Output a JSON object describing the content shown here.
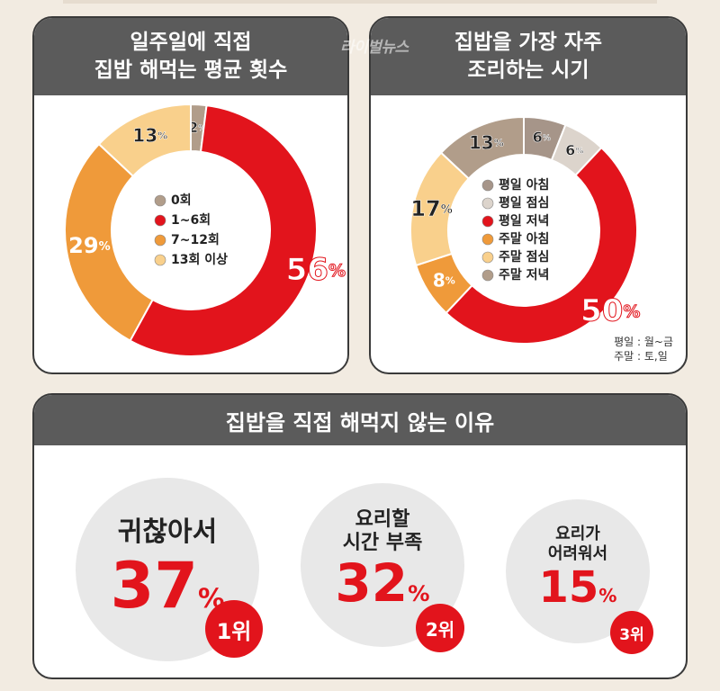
{
  "colors": {
    "red": "#e2141c",
    "orange": "#ef9a3a",
    "yellow": "#f9d08c",
    "brown": "#b19d8a",
    "taupe": "#a69589",
    "lightgray": "#dcd4cc",
    "header_bg": "#5b5b5b"
  },
  "watermark": "라이벌뉴스",
  "panel1": {
    "title_line1": "일주일에 직접",
    "title_line2": "집밥 해먹는 평균 횟수"
  },
  "panel2": {
    "title_line1": "집밥을 가장 자주",
    "title_line2": "조리하는 시기",
    "note_line1": "평일 : 월~금",
    "note_line2": "주말 : 토,일"
  },
  "panel3": {
    "title": "집밥을 직접 해먹지 않는 이유",
    "items": [
      {
        "reason_line1": "귀찮아서",
        "reason_line2": "",
        "value": "37",
        "unit": "%",
        "rank": "1위"
      },
      {
        "reason_line1": "요리할",
        "reason_line2": "시간 부족",
        "value": "32",
        "unit": "%",
        "rank": "2위"
      },
      {
        "reason_line1": "요리가",
        "reason_line2": "어려워서",
        "value": "15",
        "unit": "%",
        "rank": "3위"
      }
    ]
  },
  "chart_data": [
    {
      "type": "pie",
      "title": "일주일에 직접 집밥 해먹는 평균 횟수",
      "categories": [
        "0회",
        "1~6회",
        "7~12회",
        "13회 이상"
      ],
      "values": [
        2,
        56,
        29,
        13
      ],
      "labels": [
        "2%",
        "56%",
        "29%",
        "13%"
      ],
      "colors": [
        "#b19d8a",
        "#e2141c",
        "#ef9a3a",
        "#f9d08c"
      ],
      "legend": "center"
    },
    {
      "type": "pie",
      "title": "집밥을 가장 자주 조리하는 시기",
      "categories": [
        "평일 아침",
        "평일 점심",
        "평일 저녁",
        "주말 아침",
        "주말 점심",
        "주말 저녁"
      ],
      "values": [
        6,
        6,
        50,
        8,
        17,
        13
      ],
      "labels": [
        "6%",
        "6%",
        "50%",
        "8%",
        "17%",
        "13%"
      ],
      "colors": [
        "#a69589",
        "#dcd4cc",
        "#e2141c",
        "#ef9a3a",
        "#f9d08c",
        "#b19d8a"
      ],
      "legend": "center"
    },
    {
      "type": "bar",
      "title": "집밥을 직접 해먹지 않는 이유",
      "categories": [
        "귀찮아서",
        "요리할 시간 부족",
        "요리가 어려워서"
      ],
      "values": [
        37,
        32,
        15
      ],
      "ranks": [
        "1위",
        "2위",
        "3위"
      ]
    }
  ]
}
